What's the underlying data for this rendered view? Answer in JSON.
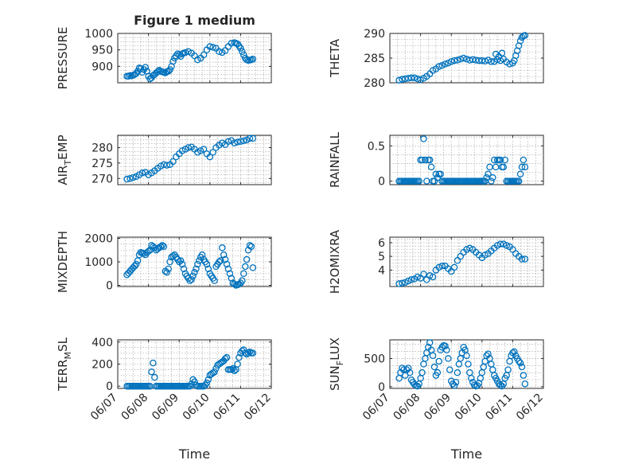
{
  "chart_data": [
    {
      "id": "pressure",
      "type": "scatter",
      "title": "Figure 1 medium",
      "ylabel": "PRESSURE",
      "ylabel_sub": "",
      "xlim": [
        "06/07",
        "06/12"
      ],
      "ylim": [
        850,
        1000
      ],
      "yticks": [
        900,
        950,
        1000
      ],
      "xtick_labels": [],
      "xlabel": "",
      "grid": true,
      "marker": "o",
      "color": "#0072BD",
      "x": [
        0.3,
        0.35,
        0.4,
        0.45,
        0.5,
        0.55,
        0.6,
        0.65,
        0.7,
        0.75,
        0.8,
        0.85,
        0.9,
        0.95,
        1.0,
        1.05,
        1.1,
        1.15,
        1.2,
        1.25,
        1.3,
        1.35,
        1.4,
        1.45,
        1.5,
        1.55,
        1.6,
        1.65,
        1.7,
        1.75,
        1.8,
        1.85,
        1.9,
        1.95,
        2.0,
        2.05,
        2.1,
        2.15,
        2.2,
        2.3,
        2.4,
        2.5,
        2.6,
        2.7,
        2.8,
        2.9,
        3.0,
        3.1,
        3.2,
        3.3,
        3.4,
        3.5,
        3.6,
        3.7,
        3.8,
        3.85,
        3.9,
        3.95,
        4.0,
        4.05,
        4.1,
        4.15,
        4.2,
        4.25,
        4.3,
        4.35,
        4.4
      ],
      "y": [
        870,
        870,
        872,
        871,
        873,
        875,
        878,
        885,
        895,
        893,
        882,
        890,
        897,
        885,
        870,
        862,
        865,
        872,
        875,
        880,
        884,
        888,
        885,
        883,
        882,
        880,
        884,
        885,
        890,
        900,
        915,
        925,
        932,
        938,
        935,
        930,
        938,
        940,
        942,
        945,
        940,
        932,
        920,
        925,
        935,
        950,
        960,
        958,
        955,
        945,
        942,
        948,
        960,
        970,
        972,
        970,
        968,
        962,
        955,
        945,
        935,
        925,
        920,
        918,
        919,
        920,
        922
      ]
    },
    {
      "id": "theta",
      "type": "scatter",
      "title": "",
      "ylabel": "THETA",
      "ylabel_sub": "",
      "xlim": [
        "06/07",
        "06/12"
      ],
      "ylim": [
        280,
        290
      ],
      "yticks": [
        280,
        285,
        290
      ],
      "xtick_labels": [],
      "xlabel": "",
      "grid": true,
      "marker": "o",
      "color": "#0072BD",
      "x": [
        0.3,
        0.4,
        0.5,
        0.6,
        0.7,
        0.8,
        0.9,
        1.0,
        1.1,
        1.2,
        1.3,
        1.4,
        1.5,
        1.6,
        1.7,
        1.8,
        1.9,
        2.0,
        2.1,
        2.2,
        2.3,
        2.4,
        2.5,
        2.6,
        2.7,
        2.8,
        2.9,
        3.0,
        3.1,
        3.2,
        3.3,
        3.4,
        3.5,
        3.6,
        3.7,
        3.8,
        3.9,
        4.0,
        4.05,
        4.1,
        4.15,
        4.2,
        4.25,
        4.3,
        4.35,
        4.4,
        3.45,
        3.55,
        3.65
      ],
      "y": [
        280.5,
        280.7,
        280.8,
        280.9,
        281.0,
        281.0,
        280.8,
        280.6,
        280.9,
        281.3,
        281.8,
        282.5,
        282.8,
        283.3,
        283.5,
        283.8,
        284.0,
        284.3,
        284.5,
        284.6,
        284.8,
        285.0,
        284.8,
        284.6,
        284.7,
        284.6,
        284.5,
        284.5,
        284.4,
        284.6,
        284.3,
        284.3,
        284.7,
        284.5,
        284.8,
        284.2,
        283.8,
        284.0,
        284.5,
        285.5,
        286.5,
        287.5,
        288.5,
        289.2,
        289.5,
        289.6,
        285.8,
        285.3,
        286.0
      ]
    },
    {
      "id": "air_temp",
      "type": "scatter",
      "title": "",
      "ylabel": "AIR",
      "ylabel_sub": "T",
      "ylabel_after": "EMP",
      "xlim": [
        "06/07",
        "06/12"
      ],
      "ylim": [
        268,
        284
      ],
      "yticks": [
        270,
        275,
        280
      ],
      "xtick_labels": [],
      "xlabel": "",
      "grid": true,
      "marker": "o",
      "color": "#0072BD",
      "x": [
        0.3,
        0.4,
        0.5,
        0.6,
        0.7,
        0.8,
        0.9,
        1.0,
        1.1,
        1.2,
        1.3,
        1.4,
        1.5,
        1.6,
        1.7,
        1.8,
        1.9,
        2.0,
        2.1,
        2.2,
        2.3,
        2.4,
        2.5,
        2.6,
        2.7,
        2.8,
        2.9,
        3.0,
        3.1,
        3.2,
        3.3,
        3.4,
        3.5,
        3.6,
        3.7,
        3.8,
        3.9,
        4.0,
        4.1,
        4.2,
        4.3,
        4.4
      ],
      "y": [
        269.8,
        270.0,
        270.3,
        270.6,
        271.2,
        271.8,
        272.0,
        271.2,
        271.8,
        272.5,
        273.3,
        274.0,
        274.5,
        274.3,
        274.5,
        275.5,
        277.0,
        278.0,
        279.0,
        279.5,
        280.0,
        280.2,
        279.5,
        278.5,
        279.0,
        279.5,
        278.0,
        277.0,
        278.5,
        280.0,
        280.8,
        281.5,
        281.0,
        282.0,
        282.3,
        281.5,
        281.8,
        282.0,
        282.2,
        282.5,
        283.0,
        283.0
      ]
    },
    {
      "id": "rainfall",
      "type": "scatter",
      "title": "",
      "ylabel": "RAINFALL",
      "ylabel_sub": "",
      "xlim": [
        "06/07",
        "06/12"
      ],
      "ylim": [
        -0.05,
        0.65
      ],
      "yticks": [
        0,
        0.5
      ],
      "xtick_labels": [],
      "xlabel": "",
      "grid": true,
      "marker": "o",
      "color": "#0072BD",
      "x": [
        0.3,
        0.35,
        0.4,
        0.45,
        0.5,
        0.55,
        0.6,
        0.65,
        0.7,
        0.75,
        0.8,
        0.85,
        0.9,
        0.95,
        1.0,
        1.05,
        1.1,
        1.15,
        1.2,
        1.25,
        1.3,
        1.35,
        1.4,
        1.45,
        1.5,
        1.55,
        1.6,
        1.65,
        1.7,
        1.75,
        1.8,
        1.85,
        1.9,
        1.95,
        2.0,
        2.05,
        2.1,
        2.15,
        2.2,
        2.25,
        2.3,
        2.35,
        2.4,
        2.45,
        2.5,
        2.55,
        2.6,
        2.65,
        2.7,
        2.75,
        2.8,
        2.85,
        2.9,
        2.95,
        3.0,
        3.05,
        3.1,
        3.15,
        3.2,
        3.25,
        3.3,
        3.35,
        3.4,
        3.45,
        3.5,
        3.55,
        3.6,
        3.65,
        3.7,
        3.75,
        3.8,
        3.85,
        3.9,
        3.95,
        4.0,
        4.05,
        4.1,
        4.15,
        4.2,
        4.25,
        4.3,
        4.35,
        4.4
      ],
      "y": [
        0,
        0,
        0,
        0,
        0,
        0,
        0,
        0,
        0,
        0,
        0,
        0,
        0,
        0,
        0.3,
        0.3,
        0.6,
        0.3,
        0,
        0.3,
        0.3,
        0.2,
        0,
        0,
        0.1,
        0.05,
        0.1,
        0.1,
        0,
        0,
        0,
        0,
        0,
        0,
        0,
        0,
        0,
        0,
        0,
        0,
        0,
        0,
        0,
        0,
        0,
        0,
        0,
        0,
        0,
        0,
        0,
        0,
        0,
        0,
        0,
        0,
        0,
        0.05,
        0.1,
        0.2,
        0,
        0.05,
        0.3,
        0.2,
        0.3,
        0.3,
        0.3,
        0.2,
        0.2,
        0.3,
        0,
        0,
        0,
        0,
        0,
        0,
        0,
        0,
        0,
        0.1,
        0.2,
        0.3,
        0.2
      ]
    },
    {
      "id": "mixdepth",
      "type": "scatter",
      "title": "",
      "ylabel": "MIXDEPTH",
      "ylabel_sub": "",
      "xlim": [
        "06/07",
        "06/12"
      ],
      "ylim": [
        -50,
        2050
      ],
      "yticks": [
        0,
        1000,
        2000
      ],
      "xtick_labels": [],
      "xlabel": "",
      "grid": true,
      "marker": "o",
      "color": "#0072BD",
      "x": [
        0.3,
        0.35,
        0.4,
        0.45,
        0.5,
        0.55,
        0.6,
        0.65,
        0.7,
        0.75,
        0.8,
        0.85,
        0.9,
        0.95,
        1.0,
        1.05,
        1.1,
        1.15,
        1.2,
        1.25,
        1.3,
        1.35,
        1.4,
        1.45,
        1.5,
        1.55,
        1.6,
        1.65,
        1.7,
        1.75,
        1.8,
        1.85,
        1.9,
        1.95,
        2.0,
        2.05,
        2.1,
        2.15,
        2.2,
        2.25,
        2.3,
        2.35,
        2.4,
        2.45,
        2.5,
        2.55,
        2.6,
        2.65,
        2.7,
        2.75,
        2.8,
        2.85,
        2.9,
        2.95,
        3.0,
        3.05,
        3.1,
        3.15,
        3.2,
        3.25,
        3.3,
        3.35,
        3.4,
        3.45,
        3.5,
        3.55,
        3.6,
        3.65,
        3.7,
        3.75,
        3.8,
        3.85,
        3.9,
        3.95,
        4.0,
        4.05,
        4.1,
        4.15,
        4.2,
        4.25,
        4.3,
        4.35,
        4.4
      ],
      "y": [
        450,
        520,
        600,
        680,
        750,
        820,
        900,
        1050,
        1300,
        1400,
        1380,
        1350,
        1300,
        1400,
        1450,
        1500,
        1700,
        1650,
        1600,
        1500,
        1550,
        1600,
        1650,
        1700,
        1650,
        600,
        550,
        700,
        1000,
        1200,
        1250,
        1300,
        1200,
        1100,
        1000,
        1050,
        900,
        700,
        500,
        400,
        300,
        200,
        250,
        400,
        550,
        700,
        900,
        1050,
        1200,
        1300,
        1100,
        1000,
        900,
        700,
        500,
        400,
        300,
        200,
        800,
        900,
        1000,
        1050,
        1600,
        1300,
        1100,
        900,
        700,
        500,
        300,
        100,
        50,
        0,
        20,
        50,
        100,
        200,
        500,
        800,
        1100,
        1500,
        1700,
        1650,
        750
      ]
    },
    {
      "id": "h2omixra",
      "type": "scatter",
      "title": "",
      "ylabel": "H2OMIXRA",
      "ylabel_sub": "",
      "xlim": [
        "06/07",
        "06/12"
      ],
      "ylim": [
        2.8,
        6.4
      ],
      "yticks": [
        4,
        5,
        6
      ],
      "xtick_labels": [],
      "xlabel": "",
      "grid": true,
      "marker": "o",
      "color": "#0072BD",
      "x": [
        0.3,
        0.4,
        0.5,
        0.6,
        0.7,
        0.8,
        0.9,
        1.0,
        1.1,
        1.2,
        1.3,
        1.4,
        1.5,
        1.6,
        1.7,
        1.8,
        1.9,
        2.0,
        2.1,
        2.2,
        2.3,
        2.4,
        2.5,
        2.6,
        2.7,
        2.8,
        2.9,
        3.0,
        3.1,
        3.2,
        3.3,
        3.4,
        3.5,
        3.6,
        3.7,
        3.8,
        3.9,
        4.0,
        4.1,
        4.2,
        4.3,
        4.4
      ],
      "y": [
        3.0,
        3.05,
        3.1,
        3.2,
        3.3,
        3.35,
        3.5,
        3.4,
        3.7,
        3.3,
        3.6,
        3.5,
        4.0,
        4.2,
        4.3,
        4.3,
        4.1,
        3.9,
        4.2,
        4.7,
        5.0,
        5.3,
        5.5,
        5.6,
        5.5,
        5.3,
        5.1,
        4.9,
        5.1,
        5.2,
        5.4,
        5.6,
        5.8,
        5.9,
        5.9,
        5.8,
        5.7,
        5.5,
        5.2,
        5.0,
        4.8,
        4.8
      ]
    },
    {
      "id": "terr_msl",
      "type": "scatter",
      "title": "",
      "ylabel": "TERR",
      "ylabel_sub": "M",
      "ylabel_after": "SL",
      "xlim": [
        "06/07",
        "06/12"
      ],
      "ylim": [
        -20,
        420
      ],
      "yticks": [
        0,
        200,
        400
      ],
      "xtick_labels": [
        "06/07",
        "06/08",
        "06/09",
        "06/10",
        "06/11",
        "06/12"
      ],
      "xlabel": "Time",
      "grid": true,
      "marker": "o",
      "color": "#0072BD",
      "x": [
        0.3,
        0.35,
        0.4,
        0.45,
        0.5,
        0.55,
        0.6,
        0.65,
        0.7,
        0.75,
        0.8,
        0.85,
        0.9,
        0.95,
        1.0,
        1.05,
        1.1,
        1.15,
        1.2,
        1.25,
        1.3,
        1.35,
        1.4,
        1.45,
        1.5,
        1.55,
        1.6,
        1.65,
        1.7,
        1.75,
        1.8,
        1.85,
        1.9,
        1.95,
        2.0,
        2.05,
        2.1,
        2.15,
        2.2,
        2.25,
        2.3,
        2.35,
        2.4,
        2.45,
        2.5,
        2.55,
        2.6,
        2.65,
        2.7,
        2.75,
        2.8,
        2.85,
        2.9,
        2.95,
        3.0,
        3.05,
        3.1,
        3.15,
        3.2,
        3.25,
        3.3,
        3.35,
        3.4,
        3.45,
        3.5,
        3.55,
        3.6,
        3.65,
        3.7,
        3.75,
        3.8,
        3.85,
        3.9,
        3.95,
        4.0,
        4.05,
        4.1,
        4.15,
        4.2,
        4.25,
        4.3,
        4.35,
        4.4
      ],
      "y": [
        0,
        0,
        0,
        0,
        0,
        0,
        0,
        0,
        0,
        0,
        0,
        0,
        0,
        0,
        0,
        0,
        130,
        210,
        80,
        0,
        0,
        0,
        0,
        0,
        0,
        0,
        0,
        0,
        0,
        0,
        0,
        0,
        0,
        0,
        0,
        0,
        0,
        0,
        0,
        0,
        0,
        0,
        20,
        60,
        40,
        10,
        0,
        0,
        0,
        0,
        0,
        10,
        30,
        60,
        100,
        110,
        120,
        130,
        160,
        190,
        200,
        210,
        220,
        230,
        250,
        260,
        150,
        150,
        150,
        160,
        140,
        150,
        200,
        260,
        300,
        320,
        330,
        300,
        290,
        300,
        310,
        300,
        300
      ]
    },
    {
      "id": "sun_flux",
      "type": "scatter",
      "title": "",
      "ylabel": "SUN",
      "ylabel_sub": "F",
      "ylabel_after": "LUX",
      "xlim": [
        "06/07",
        "06/12"
      ],
      "ylim": [
        -30,
        830
      ],
      "yticks": [
        0,
        500
      ],
      "xtick_labels": [
        "06/07",
        "06/08",
        "06/09",
        "06/10",
        "06/11",
        "06/12"
      ],
      "xlabel": "Time",
      "grid": true,
      "marker": "o",
      "color": "#0072BD",
      "x": [
        0.3,
        0.35,
        0.4,
        0.45,
        0.5,
        0.55,
        0.6,
        0.65,
        0.7,
        0.75,
        0.8,
        0.85,
        0.9,
        0.95,
        1.0,
        1.05,
        1.1,
        1.15,
        1.2,
        1.25,
        1.3,
        1.35,
        1.4,
        1.45,
        1.5,
        1.55,
        1.6,
        1.65,
        1.7,
        1.75,
        1.8,
        1.85,
        1.9,
        1.95,
        2.0,
        2.05,
        2.1,
        2.15,
        2.2,
        2.25,
        2.3,
        2.35,
        2.4,
        2.45,
        2.5,
        2.55,
        2.6,
        2.65,
        2.7,
        2.75,
        2.8,
        2.85,
        2.9,
        2.95,
        3.0,
        3.05,
        3.1,
        3.15,
        3.2,
        3.25,
        3.3,
        3.35,
        3.4,
        3.45,
        3.5,
        3.55,
        3.6,
        3.65,
        3.7,
        3.75,
        3.8,
        3.85,
        3.9,
        3.95,
        4.0,
        4.05,
        4.1,
        4.15,
        4.2,
        4.25,
        4.3,
        4.35,
        4.4
      ],
      "y": [
        150,
        250,
        330,
        300,
        200,
        300,
        330,
        250,
        120,
        80,
        40,
        20,
        10,
        50,
        150,
        250,
        400,
        500,
        600,
        700,
        780,
        650,
        550,
        350,
        200,
        250,
        450,
        650,
        700,
        730,
        720,
        650,
        500,
        300,
        100,
        50,
        20,
        80,
        250,
        400,
        500,
        600,
        700,
        650,
        550,
        400,
        250,
        150,
        80,
        30,
        10,
        20,
        60,
        150,
        250,
        350,
        450,
        550,
        580,
        500,
        400,
        300,
        200,
        150,
        100,
        50,
        30,
        10,
        50,
        150,
        200,
        300,
        450,
        550,
        600,
        620,
        550,
        500,
        450,
        420,
        350,
        200,
        50
      ]
    }
  ]
}
